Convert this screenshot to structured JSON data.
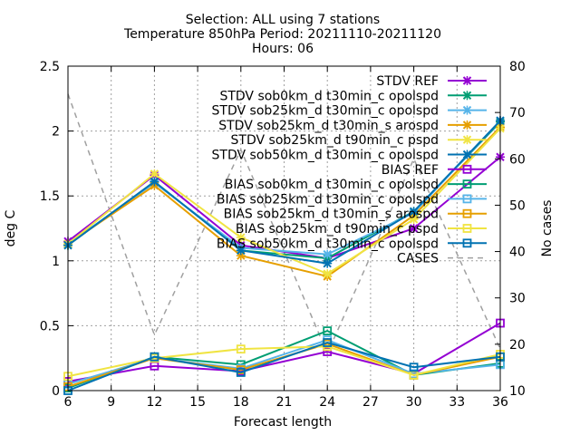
{
  "chart_data": {
    "type": "line",
    "title": [
      "Selection: ALL using     7 stations",
      "Temperature 850hPa   Period: 20211110-20211120",
      "Hours: 06"
    ],
    "xlabel": "Forecast length",
    "ylabel": "deg C",
    "y2label": "No cases",
    "x": [
      6,
      12,
      18,
      24,
      30,
      36
    ],
    "xticks": [
      6,
      9,
      12,
      15,
      18,
      21,
      24,
      27,
      30,
      33,
      36
    ],
    "xlim": [
      6,
      36
    ],
    "ylim": [
      0,
      2.5
    ],
    "yticks": [
      0,
      0.5,
      1,
      1.5,
      2,
      2.5
    ],
    "y2lim": [
      10,
      80
    ],
    "y2ticks": [
      10,
      20,
      30,
      40,
      50,
      60,
      70,
      80
    ],
    "grid": true,
    "legend_position": "top-right",
    "series": [
      {
        "name": "STDV REF",
        "color": "#9400d3",
        "marker": "x",
        "axis": "y1",
        "values": [
          1.15,
          1.66,
          1.12,
          1.02,
          1.25,
          1.8
        ]
      },
      {
        "name": "STDV sob0km_d t30min_c opolspd",
        "color": "#009e73",
        "marker": "x",
        "axis": "y1",
        "values": [
          1.12,
          1.61,
          1.08,
          1.02,
          1.38,
          2.07
        ]
      },
      {
        "name": "STDV sob25km_d t30min_c opolspd",
        "color": "#56b4e9",
        "marker": "x",
        "axis": "y1",
        "values": [
          1.13,
          1.6,
          1.1,
          1.05,
          1.37,
          2.08
        ]
      },
      {
        "name": "STDV sob25km_d t30min_s arospd",
        "color": "#e69f00",
        "marker": "x",
        "axis": "y1",
        "values": [
          1.13,
          1.58,
          1.04,
          0.88,
          1.35,
          2.03
        ]
      },
      {
        "name": "STDV sob25km_d t90min_c pspd",
        "color": "#f0e442",
        "marker": "x",
        "axis": "y1",
        "values": [
          1.13,
          1.67,
          1.18,
          0.9,
          1.32,
          2.02
        ]
      },
      {
        "name": "STDV sob50km_d t30min_c opolspd",
        "color": "#0072b2",
        "marker": "x",
        "axis": "y1",
        "values": [
          1.12,
          1.61,
          1.08,
          0.98,
          1.38,
          2.08
        ]
      },
      {
        "name": "BIAS REF",
        "color": "#9400d3",
        "marker": "square",
        "axis": "y1",
        "values": [
          0.07,
          0.19,
          0.15,
          0.3,
          0.13,
          0.52
        ]
      },
      {
        "name": "BIAS sob0km_d t30min_c opolspd",
        "color": "#009e73",
        "marker": "square",
        "axis": "y1",
        "values": [
          0.02,
          0.26,
          0.2,
          0.46,
          0.12,
          0.21
        ]
      },
      {
        "name": "BIAS sob25km_d t30min_c opolspd",
        "color": "#56b4e9",
        "marker": "square",
        "axis": "y1",
        "values": [
          0.05,
          0.25,
          0.17,
          0.39,
          0.13,
          0.2
        ]
      },
      {
        "name": "BIAS sob25km_d t30min_s arospd",
        "color": "#e69f00",
        "marker": "square",
        "axis": "y1",
        "values": [
          0.03,
          0.25,
          0.16,
          0.36,
          0.12,
          0.26
        ]
      },
      {
        "name": "BIAS sob25km_d t90min_c pspd",
        "color": "#f0e442",
        "marker": "square",
        "axis": "y1",
        "values": [
          0.11,
          0.25,
          0.32,
          0.34,
          0.12,
          0.28
        ]
      },
      {
        "name": "BIAS sob50km_d t30min_c opolspd",
        "color": "#0072b2",
        "marker": "square",
        "axis": "y1",
        "values": [
          0.0,
          0.26,
          0.14,
          0.37,
          0.18,
          0.26
        ]
      },
      {
        "name": "CASES",
        "color": "#a0a0a0",
        "marker": "none",
        "dashed": true,
        "axis": "y2",
        "values": [
          74,
          22,
          62,
          18,
          60,
          19
        ]
      }
    ]
  }
}
